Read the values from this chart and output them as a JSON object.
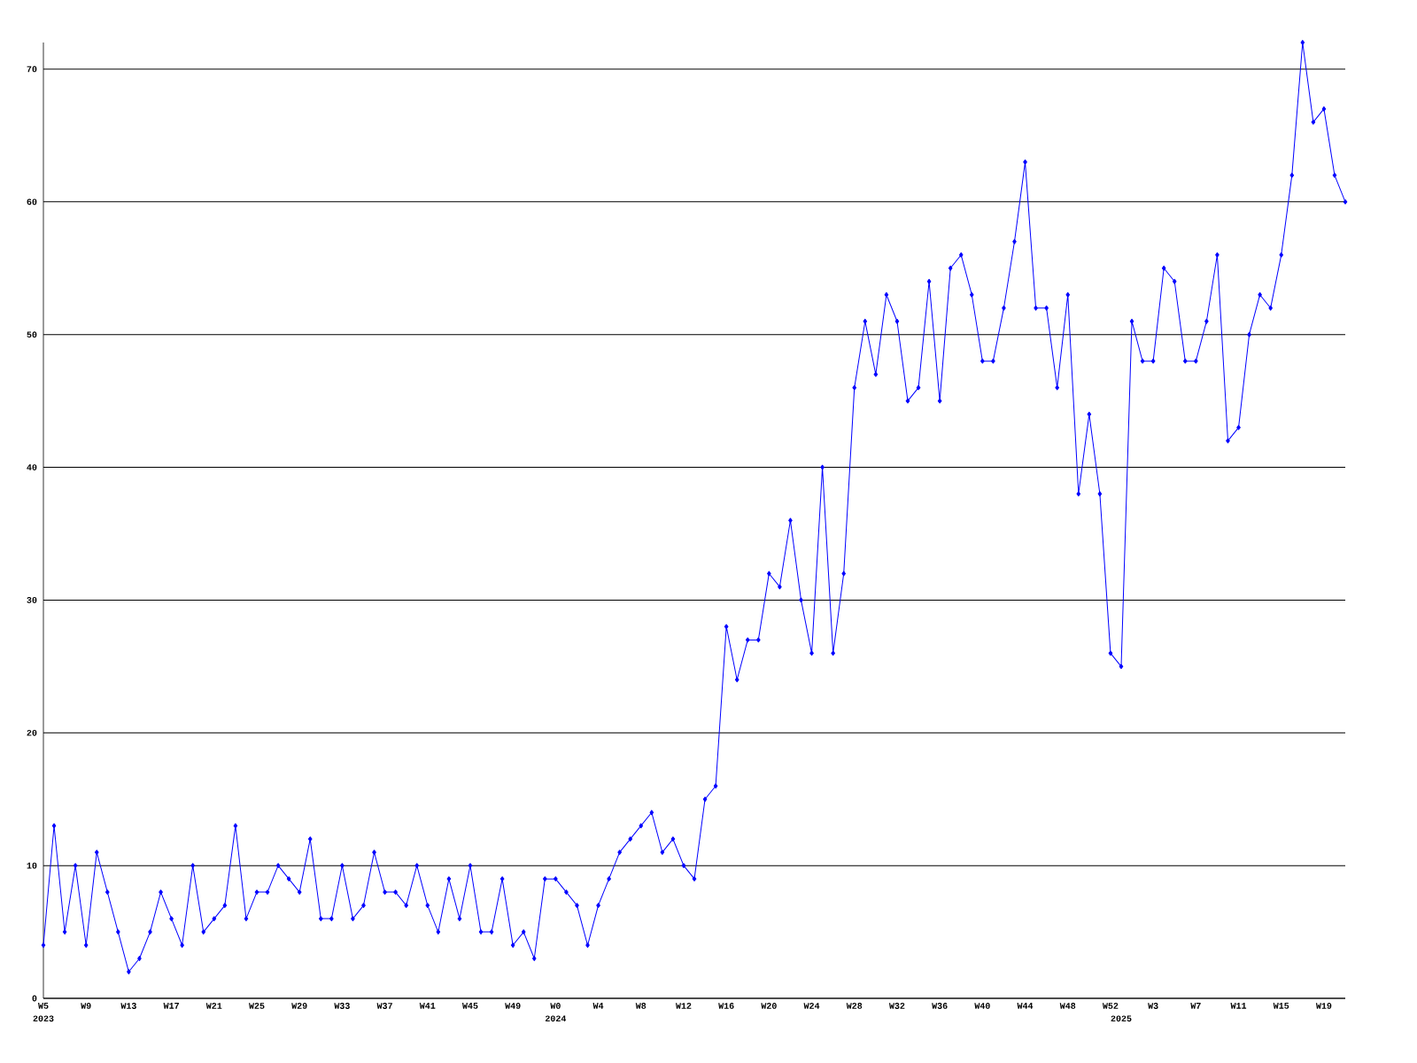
{
  "chart_data": {
    "type": "line",
    "categories": [
      "W5",
      null,
      null,
      null,
      "W9",
      null,
      null,
      null,
      "W13",
      null,
      null,
      null,
      "W17",
      null,
      null,
      null,
      "W21",
      null,
      null,
      null,
      "W25",
      null,
      null,
      null,
      "W29",
      null,
      null,
      null,
      "W33",
      null,
      null,
      null,
      "W37",
      null,
      null,
      null,
      "W41",
      null,
      null,
      null,
      "W45",
      null,
      null,
      null,
      "W49",
      null,
      null,
      null,
      "W0",
      null,
      null,
      null,
      "W4",
      null,
      null,
      null,
      "W8",
      null,
      null,
      null,
      "W12",
      null,
      null,
      null,
      "W16",
      null,
      null,
      null,
      "W20",
      null,
      null,
      null,
      "W24",
      null,
      null,
      null,
      "W28",
      null,
      null,
      null,
      "W32",
      null,
      null,
      null,
      "W36",
      null,
      null,
      null,
      "W40",
      null,
      null,
      null,
      "W44",
      null,
      null,
      null,
      "W48",
      null,
      null,
      null,
      "W52",
      null,
      null,
      null,
      "W3",
      null,
      null,
      null,
      "W7",
      null,
      null,
      null,
      "W11",
      null,
      null,
      null,
      "W15",
      null,
      null,
      null,
      "W19",
      null,
      null
    ],
    "series": [
      {
        "color": "#0000ff",
        "values": [
          4,
          13,
          5,
          10,
          4,
          11,
          8,
          5,
          2,
          3,
          5,
          8,
          6,
          4,
          10,
          5,
          6,
          7,
          13,
          6,
          8,
          8,
          10,
          9,
          8,
          12,
          6,
          6,
          10,
          6,
          7,
          11,
          8,
          8,
          7,
          10,
          7,
          5,
          9,
          6,
          10,
          5,
          5,
          9,
          4,
          5,
          3,
          9,
          9,
          8,
          7,
          4,
          7,
          9,
          11,
          12,
          13,
          14,
          11,
          12,
          10,
          9,
          15,
          16,
          28,
          24,
          27,
          27,
          32,
          31,
          36,
          30,
          26,
          40,
          26,
          32,
          46,
          51,
          47,
          53,
          51,
          45,
          46,
          54,
          45,
          55,
          56,
          53,
          48,
          48,
          52,
          57,
          63,
          52,
          52,
          46,
          53,
          38,
          44,
          38,
          26,
          25,
          51,
          48,
          48,
          55,
          54,
          48,
          48,
          51,
          56,
          42,
          43,
          50,
          53,
          52,
          56,
          62,
          72,
          66,
          67,
          62,
          60
        ]
      }
    ],
    "ylim": [
      0,
      72
    ],
    "yticks": [
      0,
      10,
      20,
      30,
      40,
      50,
      60,
      70
    ],
    "grid": "y",
    "marker": "diamond",
    "line_style": "solid",
    "annotations": [
      "2023",
      "2024",
      "2025"
    ]
  }
}
